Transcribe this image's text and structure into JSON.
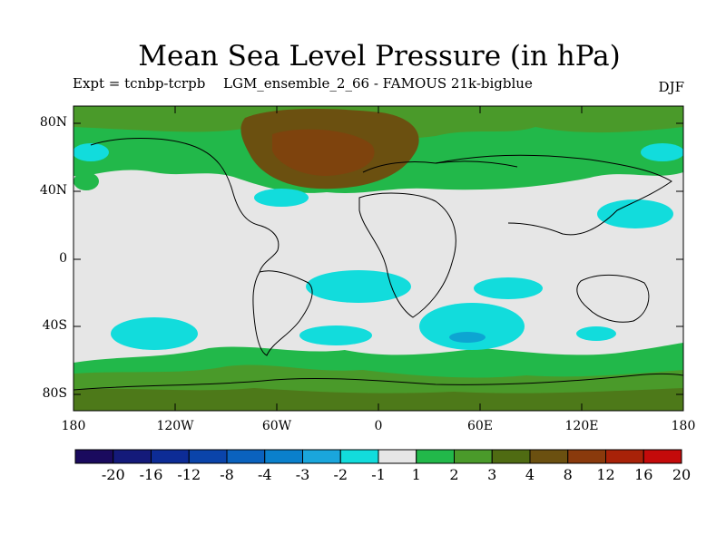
{
  "title": "Mean Sea Level Pressure (in hPa)",
  "subtitle_left": "Expt = tcnbp-tcrpb",
  "subtitle_center": "LGM_ensemble_2_66 - FAMOUS 21k-bigblue",
  "subtitle_right": "DJF",
  "lat_labels": [
    "80N",
    "40N",
    "0",
    "40S",
    "80S"
  ],
  "lon_labels": [
    "180",
    "120W",
    "60W",
    "0",
    "60E",
    "120E",
    "180"
  ],
  "colorbar": {
    "labels": [
      "-20",
      "-16",
      "-12",
      "-8",
      "-4",
      "-3",
      "-2",
      "-1",
      "1",
      "2",
      "3",
      "4",
      "8",
      "12",
      "16",
      "20"
    ],
    "colors": [
      "#1a0a5e",
      "#141a7a",
      "#0d2c96",
      "#0a44aa",
      "#0a62be",
      "#0a80cc",
      "#1aa6dc",
      "#12dcdc",
      "#e6e6e6",
      "#22b84a",
      "#4a9a2a",
      "#4f6b12",
      "#6b5010",
      "#8a3a0c",
      "#a82208",
      "#c40a0a"
    ]
  },
  "colors": {
    "background_neutral": "#e6e6e6",
    "positive_small": "#22b84a",
    "positive_mid": "#4a9a2a",
    "positive_high": "#6b5010",
    "negative_small": "#12dcdc"
  }
}
